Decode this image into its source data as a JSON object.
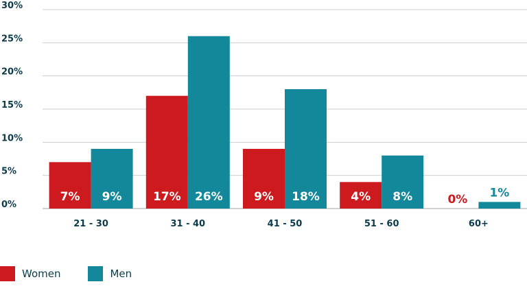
{
  "chart_data": {
    "type": "bar",
    "categories": [
      "21 - 30",
      "31 - 40",
      "41 - 50",
      "51 - 60",
      "60+"
    ],
    "series": [
      {
        "name": "Women",
        "values": [
          7,
          17,
          9,
          4,
          0
        ],
        "labels": [
          "7%",
          "17%",
          "9%",
          "4%",
          "0%"
        ],
        "color": "#cc1a1f"
      },
      {
        "name": "Men",
        "values": [
          9,
          26,
          18,
          8,
          1
        ],
        "labels": [
          "9%",
          "26%",
          "18%",
          "8%",
          "1%"
        ],
        "color": "#12889a"
      }
    ],
    "yticks": [
      "0%",
      "5%",
      "10%",
      "15%",
      "20%",
      "25%",
      "30%"
    ],
    "ylim": [
      0,
      30
    ],
    "grid": true,
    "legend_position": "bottom-left"
  }
}
